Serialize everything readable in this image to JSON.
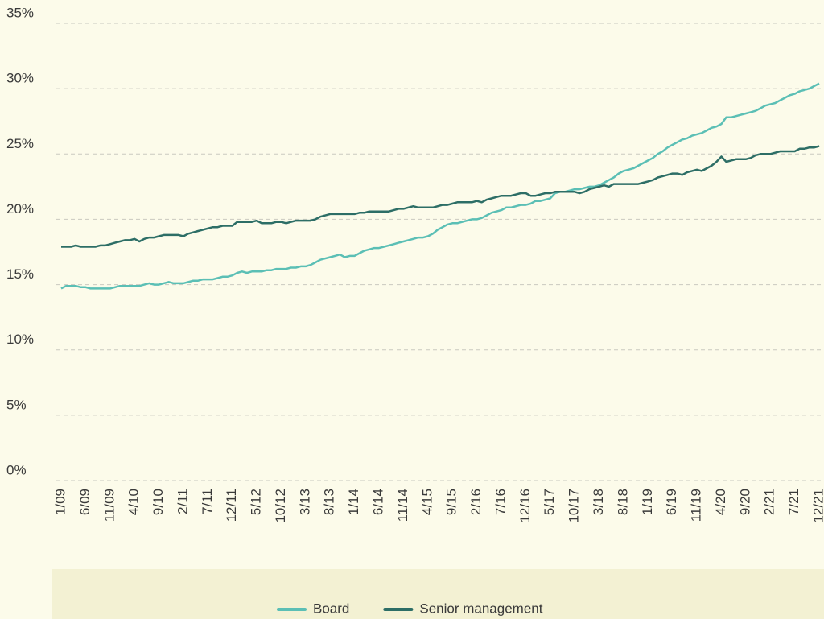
{
  "chart_data": {
    "type": "line",
    "categories": [
      "1/09",
      null,
      null,
      null,
      null,
      "6/09",
      null,
      null,
      null,
      null,
      "11/09",
      null,
      null,
      null,
      null,
      "4/10",
      null,
      null,
      null,
      null,
      "9/10",
      null,
      null,
      null,
      null,
      "2/11",
      null,
      null,
      null,
      null,
      "7/11",
      null,
      null,
      null,
      null,
      "12/11",
      null,
      null,
      null,
      null,
      "5/12",
      null,
      null,
      null,
      null,
      "10/12",
      null,
      null,
      null,
      null,
      "3/13",
      null,
      null,
      null,
      null,
      "8/13",
      null,
      null,
      null,
      null,
      "1/14",
      null,
      null,
      null,
      null,
      "6/14",
      null,
      null,
      null,
      null,
      "11/14",
      null,
      null,
      null,
      null,
      "4/15",
      null,
      null,
      null,
      null,
      "9/15",
      null,
      null,
      null,
      null,
      "2/16",
      null,
      null,
      null,
      null,
      "7/16",
      null,
      null,
      null,
      null,
      "12/16",
      null,
      null,
      null,
      null,
      "5/17",
      null,
      null,
      null,
      null,
      "10/17",
      null,
      null,
      null,
      null,
      "3/18",
      null,
      null,
      null,
      null,
      "8/18",
      null,
      null,
      null,
      null,
      "1/19",
      null,
      null,
      null,
      null,
      "6/19",
      null,
      null,
      null,
      null,
      "11/19",
      null,
      null,
      null,
      null,
      "4/20",
      null,
      null,
      null,
      null,
      "9/20",
      null,
      null,
      null,
      null,
      "2/21",
      null,
      null,
      null,
      null,
      "7/21",
      null,
      null,
      null,
      null,
      "12/21"
    ],
    "series": [
      {
        "name": "Board",
        "color": "#5bbfb5",
        "values": [
          14.7,
          14.9,
          14.9,
          14.9,
          14.8,
          14.8,
          14.7,
          14.7,
          14.7,
          14.7,
          14.7,
          14.8,
          14.9,
          14.9,
          14.9,
          14.9,
          14.9,
          15.0,
          15.1,
          15.0,
          15.0,
          15.1,
          15.2,
          15.1,
          15.1,
          15.1,
          15.2,
          15.3,
          15.3,
          15.4,
          15.4,
          15.4,
          15.5,
          15.6,
          15.6,
          15.7,
          15.9,
          16.0,
          15.9,
          16.0,
          16.0,
          16.0,
          16.1,
          16.1,
          16.2,
          16.2,
          16.2,
          16.3,
          16.3,
          16.4,
          16.4,
          16.5,
          16.7,
          16.9,
          17.0,
          17.1,
          17.2,
          17.3,
          17.1,
          17.2,
          17.2,
          17.4,
          17.6,
          17.7,
          17.8,
          17.8,
          17.9,
          18.0,
          18.1,
          18.2,
          18.3,
          18.4,
          18.5,
          18.6,
          18.6,
          18.7,
          18.9,
          19.2,
          19.4,
          19.6,
          19.7,
          19.7,
          19.8,
          19.9,
          20.0,
          20.0,
          20.1,
          20.3,
          20.5,
          20.6,
          20.7,
          20.9,
          20.9,
          21.0,
          21.1,
          21.1,
          21.2,
          21.4,
          21.4,
          21.5,
          21.6,
          22.0,
          22.1,
          22.1,
          22.2,
          22.3,
          22.3,
          22.4,
          22.5,
          22.5,
          22.6,
          22.8,
          23.0,
          23.2,
          23.5,
          23.7,
          23.8,
          23.9,
          24.1,
          24.3,
          24.5,
          24.7,
          25.0,
          25.2,
          25.5,
          25.7,
          25.9,
          26.1,
          26.2,
          26.4,
          26.5,
          26.6,
          26.8,
          27.0,
          27.1,
          27.3,
          27.8,
          27.8,
          27.9,
          28.0,
          28.1,
          28.2,
          28.3,
          28.5,
          28.7,
          28.8,
          28.9,
          29.1,
          29.3,
          29.5,
          29.6,
          29.8,
          29.9,
          30.0,
          30.2,
          30.4
        ]
      },
      {
        "name": "Senior management",
        "color": "#2d6e66",
        "values": [
          17.9,
          17.9,
          17.9,
          18.0,
          17.9,
          17.9,
          17.9,
          17.9,
          18.0,
          18.0,
          18.1,
          18.2,
          18.3,
          18.4,
          18.4,
          18.5,
          18.3,
          18.5,
          18.6,
          18.6,
          18.7,
          18.8,
          18.8,
          18.8,
          18.8,
          18.7,
          18.9,
          19.0,
          19.1,
          19.2,
          19.3,
          19.4,
          19.4,
          19.5,
          19.5,
          19.5,
          19.8,
          19.8,
          19.8,
          19.8,
          19.9,
          19.7,
          19.7,
          19.7,
          19.8,
          19.8,
          19.7,
          19.8,
          19.9,
          19.9,
          19.9,
          19.9,
          20.0,
          20.2,
          20.3,
          20.4,
          20.4,
          20.4,
          20.4,
          20.4,
          20.4,
          20.5,
          20.5,
          20.6,
          20.6,
          20.6,
          20.6,
          20.6,
          20.7,
          20.8,
          20.8,
          20.9,
          21.0,
          20.9,
          20.9,
          20.9,
          20.9,
          21.0,
          21.1,
          21.1,
          21.2,
          21.3,
          21.3,
          21.3,
          21.3,
          21.4,
          21.3,
          21.5,
          21.6,
          21.7,
          21.8,
          21.8,
          21.8,
          21.9,
          22.0,
          22.0,
          21.8,
          21.8,
          21.9,
          22.0,
          22.0,
          22.1,
          22.1,
          22.1,
          22.1,
          22.1,
          22.0,
          22.1,
          22.3,
          22.4,
          22.5,
          22.6,
          22.5,
          22.7,
          22.7,
          22.7,
          22.7,
          22.7,
          22.7,
          22.8,
          22.9,
          23.0,
          23.2,
          23.3,
          23.4,
          23.5,
          23.5,
          23.4,
          23.6,
          23.7,
          23.8,
          23.7,
          23.9,
          24.1,
          24.4,
          24.8,
          24.4,
          24.5,
          24.6,
          24.6,
          24.6,
          24.7,
          24.9,
          25.0,
          25.0,
          25.0,
          25.1,
          25.2,
          25.2,
          25.2,
          25.2,
          25.4,
          25.4,
          25.5,
          25.5,
          25.6
        ]
      }
    ],
    "ylim": [
      0,
      35
    ],
    "yticks": [
      {
        "value": 0,
        "label": "0%"
      },
      {
        "value": 5,
        "label": "5%"
      },
      {
        "value": 10,
        "label": "10%"
      },
      {
        "value": 15,
        "label": "15%"
      },
      {
        "value": 20,
        "label": "20%"
      },
      {
        "value": 25,
        "label": "25%"
      },
      {
        "value": 30,
        "label": "30%"
      },
      {
        "value": 35,
        "label": "35%"
      }
    ],
    "grid": true,
    "legend": "bottom"
  }
}
